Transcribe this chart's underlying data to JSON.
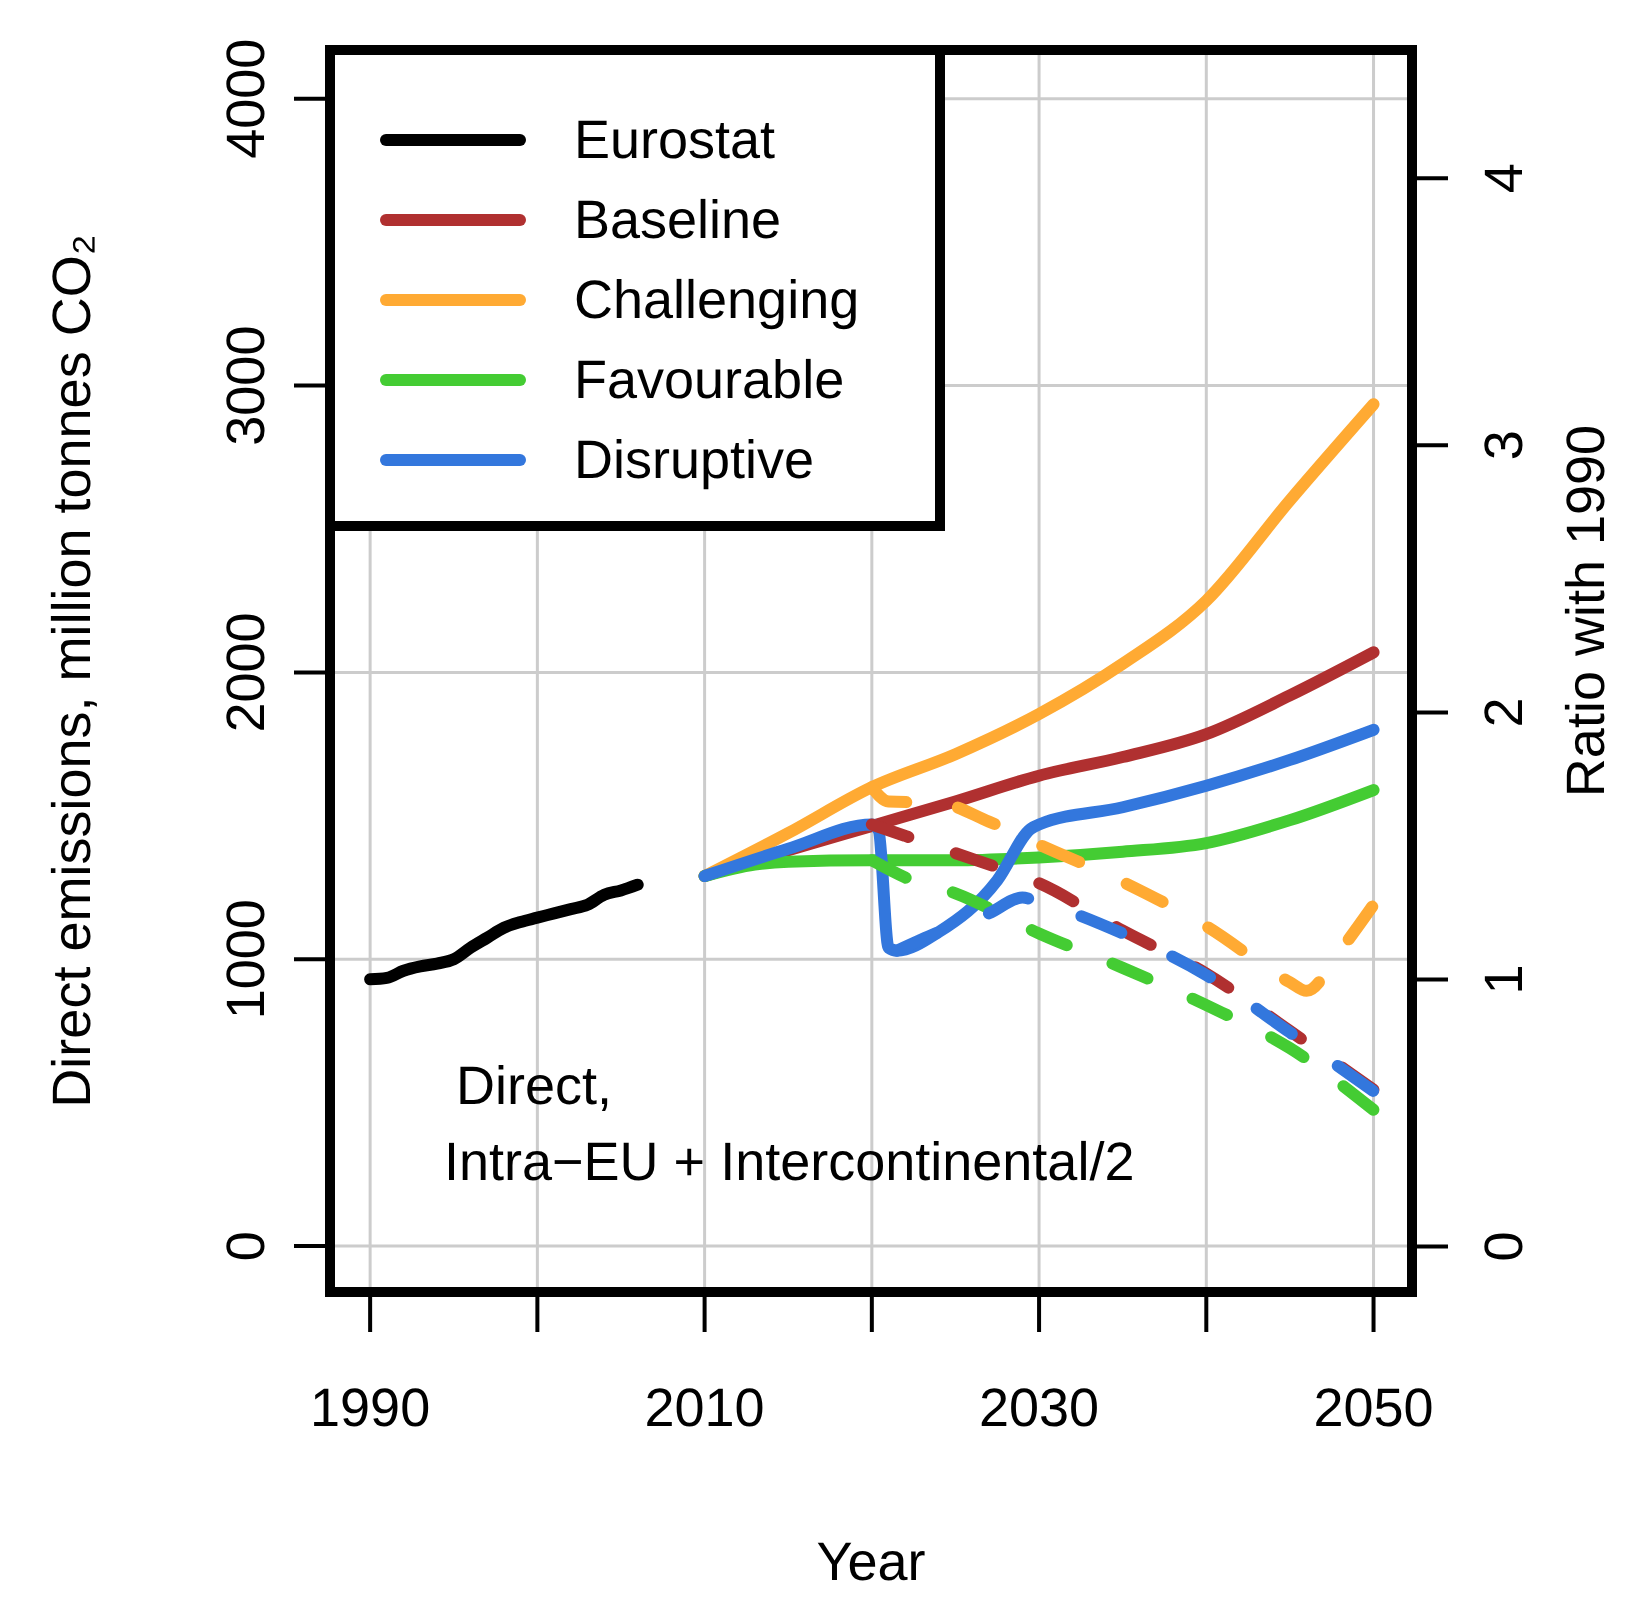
{
  "chart_data": {
    "type": "line",
    "xlabel": "Year",
    "ylabel": "Direct emissions, million tonnes CO₂",
    "y2label": "Ratio with 1990",
    "xlim": [
      1987.6,
      2052.3
    ],
    "xticks": [
      1990,
      {
        "value": 2000,
        "label": null
      },
      2010,
      {
        "value": 2020,
        "label": null
      },
      2030,
      {
        "value": 2040,
        "label": null
      },
      2050
    ],
    "ylim": [
      -160,
      4170
    ],
    "yticks": [
      0,
      1000,
      2000,
      3000,
      4000
    ],
    "y2lim": [
      -0.17,
      4.48
    ],
    "y2ticks": [
      0,
      1,
      2,
      3,
      4
    ],
    "grid": true,
    "legend": "top left",
    "line_style": "solid",
    "marker": "none",
    "annotations": [
      "Direct,",
      "Intra−EU + Intercontinental/2"
    ],
    "series": [
      {
        "name": "Eurostat",
        "color": "#000000",
        "x": [
          1990,
          1991,
          1992,
          1993,
          1994,
          1995,
          1996,
          1997,
          1998,
          1999,
          2000,
          2001,
          2002,
          2003,
          2004,
          2005,
          2006
        ],
        "values": [
          930,
          935,
          960,
          975,
          985,
          1000,
          1040,
          1075,
          1110,
          1130,
          1145,
          1160,
          1175,
          1190,
          1225,
          1240,
          1260
        ]
      },
      {
        "name": "Baseline",
        "color": "#b03030",
        "x": [
          2010,
          2015,
          2020,
          2025,
          2030,
          2035,
          2040,
          2045,
          2050
        ],
        "values": [
          1290,
          1380,
          1465,
          1550,
          1640,
          1705,
          1785,
          1920,
          2070
        ]
      },
      {
        "name": "Challenging",
        "color": "#ffaa33",
        "x": [
          2010,
          2015,
          2020,
          2025,
          2030,
          2035,
          2040,
          2045,
          2050
        ],
        "values": [
          1290,
          1440,
          1600,
          1715,
          1855,
          2030,
          2250,
          2600,
          2935
        ]
      },
      {
        "name": "Favourable",
        "color": "#44cc33",
        "x": [
          2010,
          2013,
          2015,
          2020,
          2025,
          2030,
          2035,
          2040,
          2045,
          2050
        ],
        "values": [
          1290,
          1330,
          1340,
          1345,
          1345,
          1355,
          1375,
          1405,
          1485,
          1590
        ]
      },
      {
        "name": "Disruptive",
        "color": "#3377dd",
        "x": [
          2010,
          2015,
          2020,
          2020.4,
          2021,
          2021.5,
          2024,
          2027.5,
          2029.5,
          2030,
          2035,
          2040,
          2045,
          2050
        ],
        "values": [
          1290,
          1385,
          1470,
          1450,
          1040,
          1030,
          1095,
          1275,
          1455,
          1470,
          1530,
          1605,
          1695,
          1800
        ]
      },
      {
        "color": "#b03030",
        "line_style": "dashed",
        "x": [
          2020,
          2022,
          2025,
          2028,
          2030,
          2035,
          2040,
          2045,
          2050
        ],
        "values": [
          1470,
          1430,
          1370,
          1310,
          1265,
          1100,
          950,
          750,
          545
        ]
      },
      {
        "color": "#ffaa33",
        "line_style": "dashed",
        "x": [
          2020,
          2021,
          2024,
          2027,
          2030,
          2035,
          2040,
          2045,
          2046,
          2048,
          2050
        ],
        "values": [
          1600,
          1550,
          1545,
          1480,
          1400,
          1270,
          1115,
          920,
          890,
          1030,
          1190
        ]
      },
      {
        "color": "#44cc33",
        "line_style": "dashed",
        "x": [
          2020,
          2022,
          2025,
          2030,
          2035,
          2040,
          2045,
          2050
        ],
        "values": [
          1345,
          1285,
          1230,
          1090,
          970,
          840,
          690,
          475
        ]
      },
      {
        "color": "#3377dd",
        "line_style": "dashed",
        "x": [
          2021.5,
          2024,
          2027,
          2029,
          2030,
          2035,
          2040,
          2045,
          2050
        ],
        "values": [
          1030,
          1095,
          1160,
          1215,
          1200,
          1090,
          945,
          745,
          540
        ]
      }
    ]
  }
}
